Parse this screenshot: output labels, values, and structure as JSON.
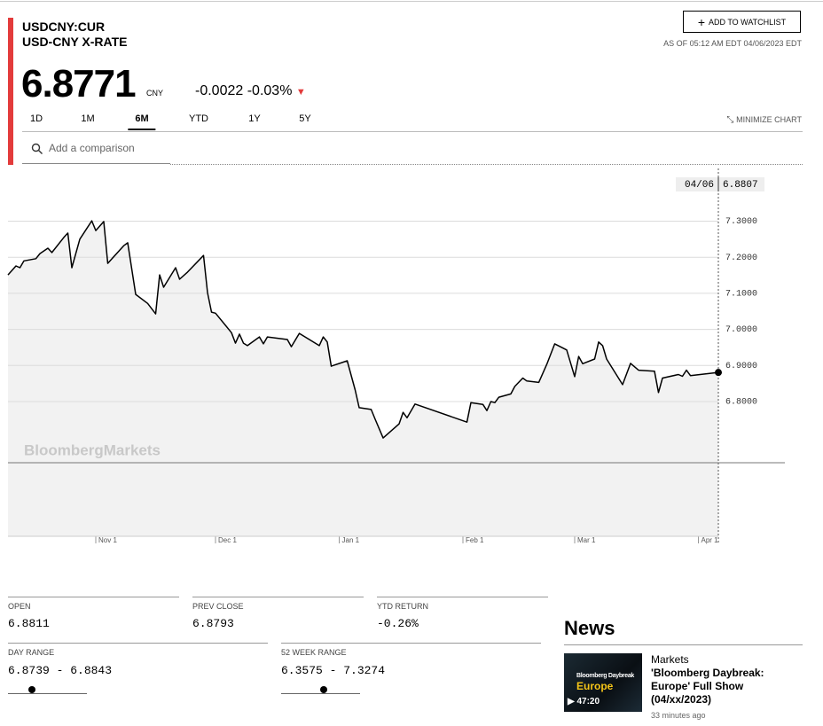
{
  "header": {
    "symbol": "USDCNY:CUR",
    "name": "USD-CNY X-RATE",
    "watchlist_button": "ADD TO WATCHLIST",
    "as_of": "AS OF 05:12 AM EDT 04/06/2023 EDT",
    "price": "6.8771",
    "currency": "CNY",
    "change": "-0.0022",
    "change_percent": "-0.03%"
  },
  "tabs": {
    "items": [
      "1D",
      "1M",
      "6M",
      "YTD",
      "1Y",
      "5Y"
    ],
    "active": "6M",
    "minimize": "MINIMIZE CHART"
  },
  "comparison_placeholder": "Add a comparison",
  "chart_data": {
    "type": "line",
    "color": "#000000",
    "x": [
      "10/10",
      "10/12",
      "10/13",
      "10/14",
      "10/17",
      "10/18",
      "10/20",
      "10/21",
      "10/24",
      "10/25",
      "10/26",
      "10/28",
      "10/31",
      "11/01",
      "11/03",
      "11/04",
      "11/08",
      "11/09",
      "11/11",
      "11/14",
      "11/16",
      "11/17",
      "11/18",
      "11/21",
      "11/22",
      "11/24",
      "11/28",
      "11/29",
      "11/30",
      "12/01",
      "12/05",
      "12/06",
      "12/07",
      "12/08",
      "12/09",
      "12/12",
      "12/13",
      "12/14",
      "12/19",
      "12/20",
      "12/22",
      "12/27",
      "12/28",
      "12/29",
      "12/30",
      "01/03",
      "01/05",
      "01/06",
      "01/09",
      "01/10",
      "01/12",
      "01/16",
      "01/17",
      "01/18",
      "01/20",
      "02/02",
      "02/03",
      "02/06",
      "02/07",
      "02/08",
      "02/09",
      "02/10",
      "02/13",
      "02/14",
      "02/16",
      "02/17",
      "02/20",
      "02/22",
      "02/24",
      "02/27",
      "03/01",
      "03/02",
      "03/03",
      "03/06",
      "03/07",
      "03/08",
      "03/09",
      "03/13",
      "03/15",
      "03/17",
      "03/21",
      "03/22",
      "03/23",
      "03/27",
      "03/28",
      "03/29",
      "03/30",
      "04/06"
    ],
    "values": [
      7.151,
      7.176,
      7.171,
      7.19,
      7.196,
      7.21,
      7.225,
      7.213,
      7.255,
      7.267,
      7.171,
      7.25,
      7.301,
      7.274,
      7.299,
      7.183,
      7.232,
      7.24,
      7.097,
      7.072,
      7.043,
      7.151,
      7.117,
      7.171,
      7.139,
      7.159,
      7.205,
      7.102,
      7.048,
      7.045,
      6.991,
      6.962,
      6.987,
      6.962,
      6.955,
      6.979,
      6.96,
      6.979,
      6.972,
      6.952,
      6.989,
      6.955,
      6.979,
      6.965,
      6.898,
      6.913,
      6.832,
      6.783,
      6.778,
      6.751,
      6.699,
      6.738,
      6.77,
      6.755,
      6.793,
      6.743,
      6.797,
      6.792,
      6.775,
      6.8,
      6.797,
      6.812,
      6.821,
      6.842,
      6.865,
      6.857,
      6.853,
      6.903,
      6.96,
      6.943,
      6.869,
      6.925,
      6.905,
      6.918,
      6.965,
      6.955,
      6.918,
      6.847,
      6.906,
      6.887,
      6.884,
      6.825,
      6.865,
      6.875,
      6.87,
      6.887,
      6.872,
      6.8807
    ],
    "xlim": [
      "10/10",
      "04/06"
    ],
    "xticks": [
      {
        "value": "11/01",
        "label": "Nov 1"
      },
      {
        "value": "12/01",
        "label": "Dec 1"
      },
      {
        "value": "01/01",
        "label": "Jan 1"
      },
      {
        "value": "02/01",
        "label": "Feb 1"
      },
      {
        "value": "03/01",
        "label": "Mar 1"
      },
      {
        "value": "04/01",
        "label": "Apr 1"
      }
    ],
    "ylim": [
      6.4265,
      7.4462
    ],
    "yticks": [
      {
        "value": 6.8,
        "label": "6.8000"
      },
      {
        "value": 6.9,
        "label": "6.9000"
      },
      {
        "value": 7.0,
        "label": "7.0000"
      },
      {
        "value": 7.1,
        "label": "7.1000"
      },
      {
        "value": 7.2,
        "label": "7.2000"
      },
      {
        "value": 7.3,
        "label": "7.3000"
      }
    ],
    "grid": true,
    "watermark": "BloombergMarkets",
    "crosshair": {
      "date": "04/06",
      "value": "6.8807"
    }
  },
  "stats": [
    {
      "label": "OPEN",
      "value": "6.8811"
    },
    {
      "label": "PREV CLOSE",
      "value": "6.8793"
    },
    {
      "label": "YTD RETURN",
      "value": "-0.26%"
    }
  ],
  "ranges": [
    {
      "label": "DAY RANGE",
      "value": "6.8739 - 6.8843"
    },
    {
      "label": "52 WEEK RANGE",
      "value": "6.3575 - 7.3274"
    }
  ],
  "news": {
    "heading": "News",
    "item": {
      "category": "Markets",
      "title": "'Bloomberg Daybreak: Europe' Full Show (04/xx/2023)",
      "time": "33 minutes ago",
      "thumbnail": {
        "title": "Bloomberg Daybreak",
        "subtitle": "Europe",
        "duration": "47:20"
      }
    }
  }
}
